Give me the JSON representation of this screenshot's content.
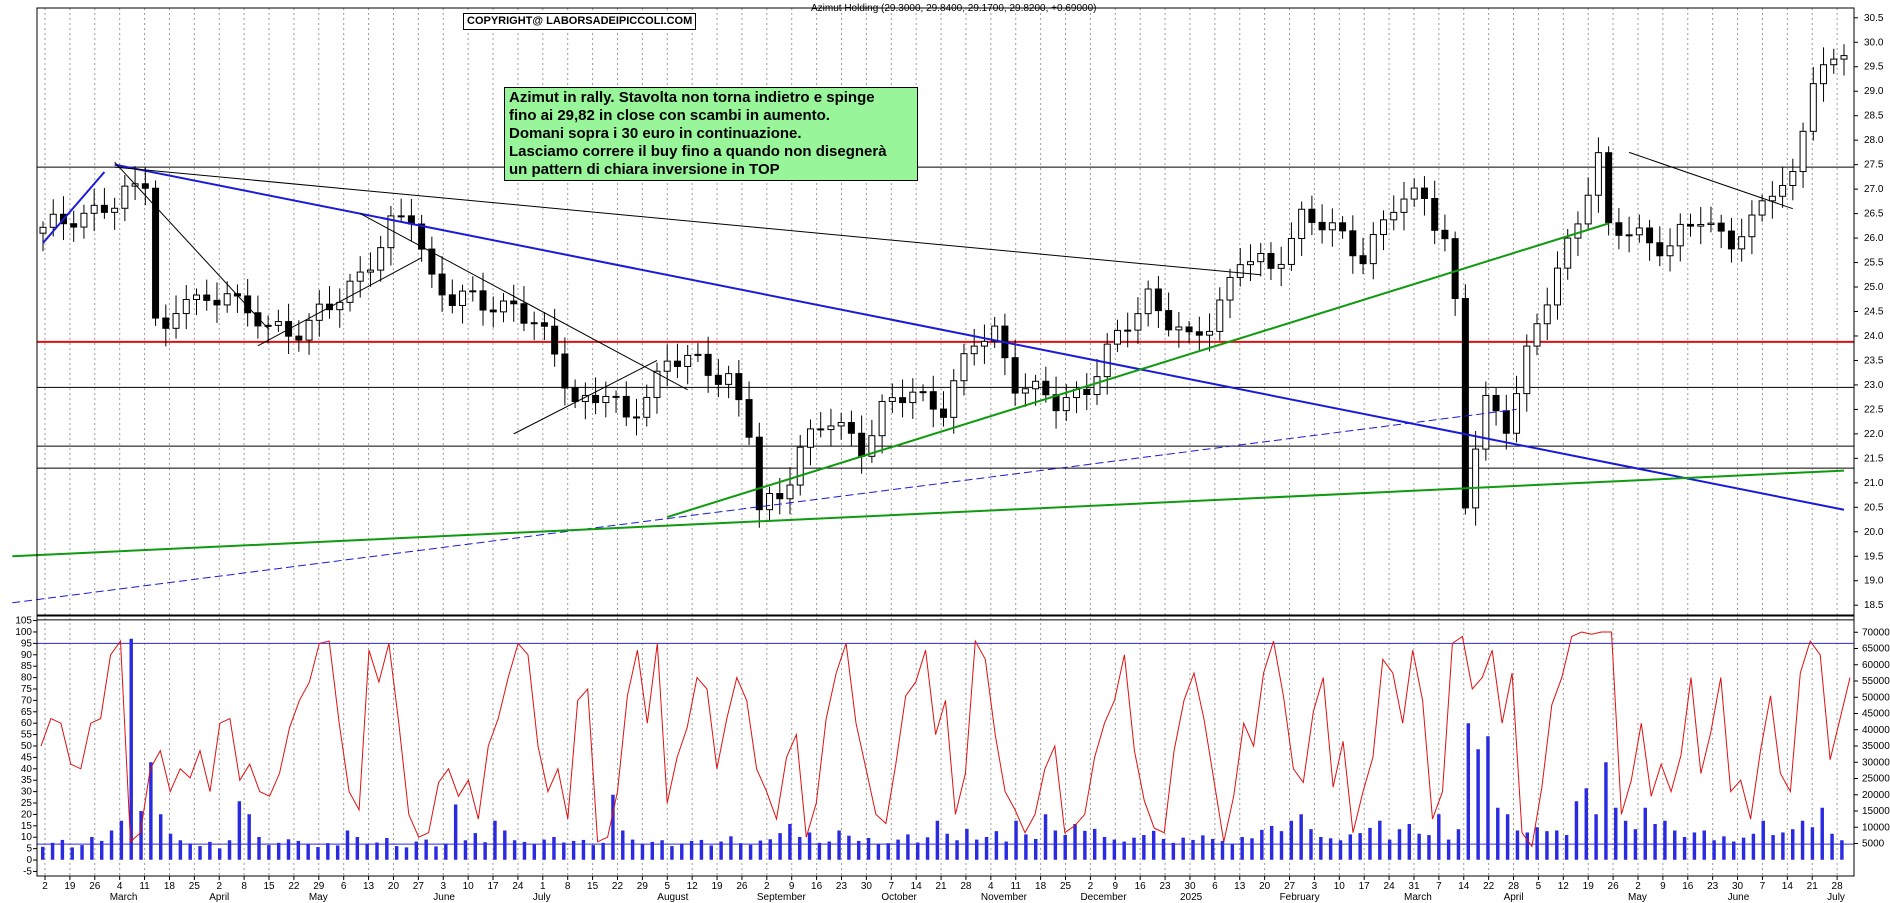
{
  "header": {
    "copyright": "COPYRIGHT@ LABORSADEIPICCOLI.COM",
    "title": "Azimut Holding (29.3000, 29.8400, 29.1700, 29.8200, +0.69000)"
  },
  "annotation": {
    "lines": [
      "Azimut in rally. Stavolta non torna indietro e spinge",
      "fino ai 29,82 in close con scambi in aumento.",
      "Domani sopra i 30 euro in continuazione.",
      "Lasciamo correre il buy fino a quando non disegnerà",
      "un pattern di chiara inversione in TOP"
    ]
  },
  "colors": {
    "candle": "#000000",
    "support_line": "#e01010",
    "trend_blue": "#1a1adb",
    "trend_green": "#109a10",
    "stochastic": "#e01010",
    "volume": "#2a2ae0",
    "level": "#000000",
    "note_bg": "#98f59a"
  },
  "chart_data": [
    {
      "type": "candlestick",
      "title": "Azimut Holding (29.3000, 29.8400, 29.1700, 29.8200, +0.69000)",
      "ylim": [
        18.3,
        30.7
      ],
      "y_ticks": [
        "18.5",
        "19.0",
        "19.5",
        "20.0",
        "20.5",
        "21.0",
        "21.5",
        "22.0",
        "22.5",
        "23.0",
        "23.5",
        "24.0",
        "24.5",
        "25.0",
        "25.5",
        "26.0",
        "26.5",
        "27.0",
        "27.5",
        "28.0",
        "28.5",
        "29.0",
        "29.5",
        "30.0",
        "30.5"
      ],
      "x_day_labels": [
        "2",
        "19",
        "26",
        "4",
        "11",
        "18",
        "25",
        "2",
        "8",
        "15",
        "22",
        "29",
        "6",
        "13",
        "20",
        "27",
        "3",
        "10",
        "17",
        "24",
        "1",
        "8",
        "15",
        "22",
        "29",
        "5",
        "12",
        "19",
        "26",
        "2",
        "9",
        "16",
        "23",
        "30",
        "7",
        "14",
        "21",
        "28",
        "4",
        "11",
        "18",
        "25",
        "2",
        "9",
        "16",
        "23",
        "30",
        "6",
        "13",
        "20",
        "27",
        "3",
        "10",
        "17",
        "24",
        "31",
        "7",
        "14",
        "22",
        "28",
        "5",
        "12",
        "19",
        "26",
        "2",
        "9",
        "16",
        "23",
        "30",
        "7",
        "14",
        "21",
        "28"
      ],
      "x_month_labels": [
        "March",
        "April",
        "May",
        "June",
        "July",
        "August",
        "September",
        "October",
        "November",
        "December",
        "2025",
        "February",
        "March",
        "April",
        "May",
        "June",
        "July"
      ],
      "horizontal_levels": [
        27.45,
        22.95,
        21.75,
        21.3,
        18.2
      ],
      "support_level": 23.88,
      "close_path": [
        [
          0,
          26.1
        ],
        [
          3,
          26.5
        ],
        [
          7,
          26.6
        ],
        [
          10,
          27.3
        ],
        [
          11,
          24.5
        ],
        [
          12,
          24.0
        ],
        [
          14,
          24.8
        ],
        [
          16,
          24.6
        ],
        [
          18,
          25.1
        ],
        [
          20,
          24.3
        ],
        [
          24,
          24.1
        ],
        [
          28,
          24.5
        ],
        [
          31,
          25.3
        ],
        [
          34,
          26.2
        ],
        [
          36,
          26.4
        ],
        [
          38,
          25.2
        ],
        [
          40,
          24.8
        ],
        [
          43,
          24.6
        ],
        [
          46,
          24.7
        ],
        [
          48,
          24.2
        ],
        [
          50,
          23.6
        ],
        [
          52,
          22.7
        ],
        [
          55,
          22.8
        ],
        [
          57,
          22.2
        ],
        [
          59,
          22.9
        ],
        [
          61,
          23.5
        ],
        [
          64,
          23.4
        ],
        [
          67,
          23.2
        ],
        [
          69,
          22.0
        ],
        [
          70,
          20.4
        ],
        [
          72,
          20.7
        ],
        [
          74,
          21.8
        ],
        [
          77,
          22.2
        ],
        [
          80,
          21.8
        ],
        [
          82,
          22.5
        ],
        [
          85,
          22.8
        ],
        [
          88,
          22.6
        ],
        [
          91,
          23.8
        ],
        [
          93,
          24.1
        ],
        [
          95,
          23.1
        ],
        [
          97,
          22.8
        ],
        [
          99,
          22.6
        ],
        [
          102,
          23.0
        ],
        [
          105,
          23.9
        ],
        [
          108,
          24.9
        ],
        [
          110,
          24.3
        ],
        [
          112,
          23.8
        ],
        [
          114,
          24.3
        ],
        [
          117,
          25.6
        ],
        [
          120,
          25.3
        ],
        [
          123,
          26.5
        ],
        [
          126,
          26.1
        ],
        [
          129,
          25.7
        ],
        [
          132,
          26.6
        ],
        [
          135,
          26.9
        ],
        [
          137,
          26.0
        ],
        [
          138,
          24.6
        ],
        [
          139,
          20.5
        ],
        [
          140,
          21.7
        ],
        [
          141,
          22.6
        ],
        [
          143,
          22.3
        ],
        [
          145,
          23.6
        ],
        [
          147,
          24.7
        ],
        [
          149,
          25.9
        ],
        [
          151,
          27.1
        ],
        [
          152,
          27.6
        ],
        [
          153,
          26.1
        ],
        [
          156,
          26.1
        ],
        [
          159,
          25.8
        ],
        [
          162,
          26.4
        ],
        [
          165,
          26.0
        ],
        [
          167,
          26.2
        ],
        [
          169,
          27.0
        ],
        [
          171,
          27.3
        ],
        [
          173,
          29.3
        ],
        [
          175,
          29.4
        ],
        [
          176,
          29.82
        ]
      ],
      "trendlines_blue": [
        [
          [
            0,
            25.9
          ],
          [
            6,
            27.35
          ]
        ],
        [
          [
            7,
            27.5
          ],
          [
            176,
            20.45
          ]
        ]
      ],
      "trendlines_blue_dashed": [
        [
          [
            -3,
            18.55
          ],
          [
            144,
            22.5
          ]
        ]
      ],
      "trendlines_green": [
        [
          [
            -3,
            19.5
          ],
          [
            176,
            21.25
          ]
        ],
        [
          [
            61,
            20.3
          ],
          [
            153,
            26.3
          ]
        ]
      ],
      "trendlines_thin": [
        [
          [
            7,
            27.55
          ],
          [
            22,
            24.15
          ]
        ],
        [
          [
            21,
            23.8
          ],
          [
            37,
            25.6
          ]
        ],
        [
          [
            31,
            26.5
          ],
          [
            63,
            22.9
          ]
        ],
        [
          [
            46,
            22.0
          ],
          [
            60,
            23.5
          ]
        ],
        [
          [
            7,
            27.45
          ],
          [
            119,
            25.25
          ]
        ],
        [
          [
            155,
            27.75
          ],
          [
            171,
            26.6
          ]
        ]
      ]
    },
    {
      "type": "line",
      "name": "stochastic",
      "ylim": [
        -7,
        107
      ],
      "y_ticks": [
        "-5",
        "0",
        "5",
        "10",
        "15",
        "20",
        "25",
        "30",
        "35",
        "40",
        "45",
        "50",
        "55",
        "60",
        "65",
        "70",
        "75",
        "80",
        "85",
        "90",
        "95",
        "100",
        "105"
      ],
      "levels": [
        7,
        95
      ],
      "values": [
        50,
        62,
        60,
        42,
        40,
        60,
        62,
        90,
        96,
        8,
        12,
        40,
        48,
        30,
        40,
        36,
        48,
        30,
        60,
        62,
        35,
        42,
        30,
        28,
        38,
        58,
        70,
        78,
        95,
        96,
        60,
        30,
        22,
        92,
        78,
        95,
        60,
        20,
        10,
        12,
        34,
        40,
        28,
        35,
        18,
        50,
        62,
        80,
        95,
        90,
        50,
        30,
        40,
        18,
        70,
        75,
        8,
        10,
        30,
        72,
        92,
        60,
        95,
        25,
        45,
        58,
        80,
        75,
        40,
        62,
        80,
        70,
        40,
        30,
        18,
        45,
        55,
        10,
        25,
        62,
        82,
        95,
        60,
        40,
        20,
        16,
        42,
        72,
        78,
        92,
        55,
        70,
        20,
        38,
        96,
        88,
        55,
        30,
        22,
        12,
        20,
        40,
        50,
        12,
        15,
        20,
        45,
        60,
        70,
        90,
        48,
        26,
        14,
        12,
        48,
        70,
        82,
        62,
        35,
        8,
        28,
        60,
        50,
        82,
        96,
        72,
        40,
        34,
        65,
        80,
        32,
        52,
        12,
        30,
        45,
        88,
        82,
        60,
        92,
        70,
        18,
        30,
        95,
        98,
        75,
        80,
        92,
        60,
        82,
        12,
        6,
        32,
        68,
        80,
        98,
        100,
        99,
        100,
        100,
        20,
        35,
        60,
        28,
        42,
        30,
        46,
        80,
        38,
        56,
        80,
        30,
        35,
        18,
        48,
        72,
        38,
        30,
        82,
        96,
        90,
        44,
        62,
        80
      ]
    },
    {
      "type": "bar",
      "name": "volume",
      "ylim": [
        -5000,
        75000
      ],
      "y_ticks": [
        "5000",
        "10000",
        "15000",
        "20000",
        "25000",
        "30000",
        "35000",
        "40000",
        "45000",
        "50000",
        "55000",
        "60000",
        "65000",
        "70000"
      ],
      "values": [
        4000,
        5200,
        6100,
        3800,
        4500,
        7000,
        5800,
        9000,
        12000,
        68000,
        15000,
        30000,
        14000,
        8000,
        6000,
        5000,
        4200,
        5500,
        3500,
        6000,
        18000,
        14000,
        7000,
        4500,
        5200,
        6300,
        5800,
        4900,
        3900,
        5100,
        4400,
        9000,
        7000,
        4800,
        5300,
        6700,
        4200,
        3800,
        5600,
        6200,
        4100,
        5000,
        17000,
        6000,
        8200,
        5400,
        12000,
        9000,
        6000,
        5500,
        4800,
        6200,
        7000,
        5300,
        5800,
        6100,
        4500,
        5200,
        20000,
        9000,
        6200,
        4800,
        5500,
        6000,
        4200,
        5000,
        5800,
        6100,
        4400,
        5600,
        7200,
        5100,
        4600,
        5900,
        6300,
        8200,
        11000,
        7000,
        8400,
        5200,
        5600,
        9000,
        7400,
        5800,
        6700,
        4900,
        5100,
        6200,
        7800,
        5300,
        6900,
        12000,
        8000,
        6000,
        9500,
        6200,
        7000,
        8800,
        5600,
        12000,
        7800,
        6400,
        14000,
        9000,
        7600,
        11000,
        8900,
        9500,
        7000,
        6200,
        5600,
        6800,
        7600,
        8900,
        6400,
        5200,
        6800,
        6100,
        7500,
        6400,
        5800,
        4900,
        7000,
        6600,
        9200,
        10400,
        8800,
        12000,
        14000,
        9400,
        7000,
        6600,
        6000,
        7800,
        8200,
        9800,
        12000,
        6200,
        9400,
        11000,
        8000,
        7600,
        14000,
        6200,
        9400,
        42000,
        34000,
        38000,
        16000,
        14000,
        9000,
        8400,
        10000,
        8800,
        9000,
        7600,
        18000,
        22000,
        14000,
        30000,
        16000,
        12000,
        9400,
        16000,
        11000,
        12000,
        9000,
        7000,
        8400,
        9000,
        6000,
        7200,
        5600,
        6800,
        8000,
        12000,
        7600,
        8400,
        9400,
        12000,
        10000,
        16000,
        8000,
        6000
      ]
    }
  ]
}
